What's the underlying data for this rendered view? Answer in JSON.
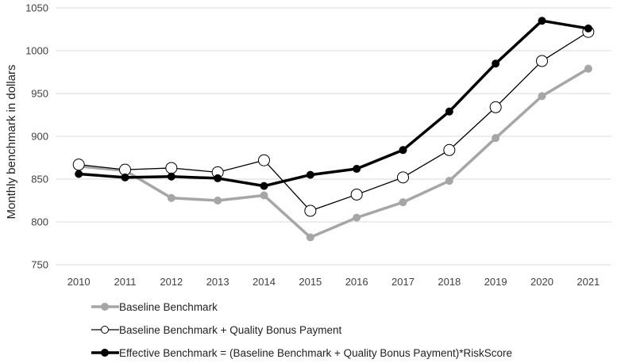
{
  "chart_data": {
    "type": "line",
    "title": "",
    "xlabel": "",
    "ylabel": "Monthly benchmark in dollars",
    "ylim": [
      750,
      1050
    ],
    "yticks": [
      750,
      800,
      850,
      900,
      950,
      1000,
      1050
    ],
    "ytick_labels": [
      "750",
      "800",
      "850",
      "900",
      "950",
      "1000",
      "1050"
    ],
    "categories": [
      "2010",
      "2011",
      "2012",
      "2013",
      "2014",
      "2015",
      "2016",
      "2017",
      "2018",
      "2019",
      "2020",
      "2021"
    ],
    "grid": "horizontal",
    "legend_position": "bottom",
    "series": [
      {
        "name": "Baseline Benchmark",
        "values": [
          865,
          860,
          828,
          825,
          831,
          782,
          805,
          823,
          848,
          898,
          947,
          979
        ],
        "color": "#999999",
        "marker": "filled"
      },
      {
        "name": "Baseline Benchmark + Quality Bonus Payment",
        "values": [
          867,
          861,
          863,
          858,
          872,
          813,
          832,
          852,
          884,
          934,
          988,
          1022
        ],
        "color": "#000000",
        "marker": "hollow"
      },
      {
        "name": "Effective Benchmark = (Baseline Benchmark + Quality Bonus Payment)*RiskScore",
        "values": [
          856,
          852,
          853,
          851,
          842,
          855,
          862,
          884,
          929,
          985,
          1035,
          1026
        ],
        "color": "#000000",
        "marker": "filled"
      }
    ]
  }
}
